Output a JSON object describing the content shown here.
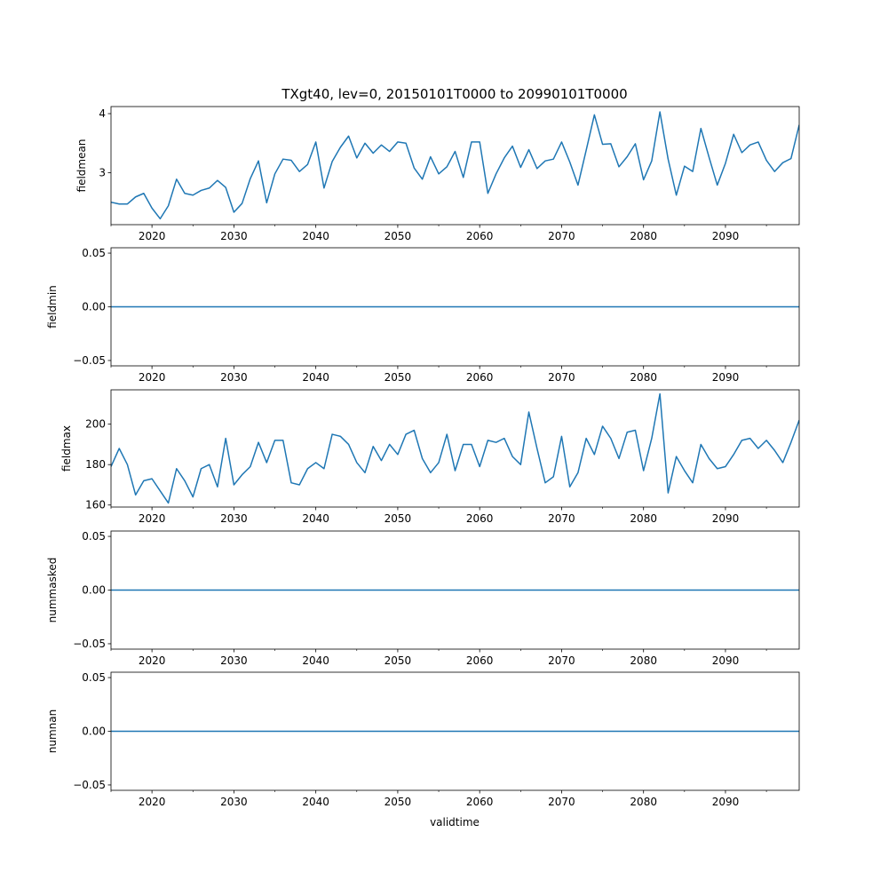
{
  "figure": {
    "title": "TXgt40, lev=0, 20150101T0000 to 20990101T0000",
    "xlabel": "validtime",
    "line_color": "#1f77b4"
  },
  "chart_data": [
    {
      "type": "line",
      "ylabel": "fieldmean",
      "xlim": [
        2015,
        2099
      ],
      "ylim": [
        2.12,
        4.12
      ],
      "yticks": [
        3,
        4
      ],
      "ytick_labels": [
        "3",
        "4"
      ],
      "xticks": [
        2020,
        2030,
        2040,
        2050,
        2060,
        2070,
        2080,
        2090
      ],
      "xtick_labels": [
        "2020",
        "2030",
        "2040",
        "2050",
        "2060",
        "2070",
        "2080",
        "2090"
      ],
      "x": [
        2015,
        2016,
        2017,
        2018,
        2019,
        2020,
        2021,
        2022,
        2023,
        2024,
        2025,
        2026,
        2027,
        2028,
        2029,
        2030,
        2031,
        2032,
        2033,
        2034,
        2035,
        2036,
        2037,
        2038,
        2039,
        2040,
        2041,
        2042,
        2043,
        2044,
        2045,
        2046,
        2047,
        2048,
        2049,
        2050,
        2051,
        2052,
        2053,
        2054,
        2055,
        2056,
        2057,
        2058,
        2059,
        2060,
        2061,
        2062,
        2063,
        2064,
        2065,
        2066,
        2067,
        2068,
        2069,
        2070,
        2071,
        2072,
        2073,
        2074,
        2075,
        2076,
        2077,
        2078,
        2079,
        2080,
        2081,
        2082,
        2083,
        2084,
        2085,
        2086,
        2087,
        2088,
        2089,
        2090,
        2091,
        2092,
        2093,
        2094,
        2095,
        2096,
        2097,
        2098,
        2099
      ],
      "values": [
        2.5,
        2.47,
        2.47,
        2.59,
        2.65,
        2.4,
        2.22,
        2.44,
        2.89,
        2.65,
        2.62,
        2.7,
        2.74,
        2.87,
        2.75,
        2.33,
        2.48,
        2.9,
        3.2,
        2.49,
        2.98,
        3.23,
        3.21,
        3.02,
        3.14,
        3.52,
        2.74,
        3.19,
        3.43,
        3.62,
        3.25,
        3.5,
        3.33,
        3.47,
        3.36,
        3.52,
        3.5,
        3.08,
        2.89,
        3.27,
        2.98,
        3.1,
        3.36,
        2.92,
        3.52,
        3.52,
        2.65,
        2.98,
        3.25,
        3.45,
        3.09,
        3.39,
        3.07,
        3.2,
        3.23,
        3.52,
        3.18,
        2.79,
        3.38,
        3.98,
        3.48,
        3.49,
        3.1,
        3.27,
        3.49,
        2.88,
        3.2,
        4.03,
        3.23,
        2.62,
        3.11,
        3.02,
        3.75,
        3.26,
        2.79,
        3.16,
        3.65,
        3.34,
        3.47,
        3.52,
        3.21,
        3.02,
        3.17,
        3.24,
        3.81
      ]
    },
    {
      "type": "line",
      "ylabel": "fieldmin",
      "xlim": [
        2015,
        2099
      ],
      "ylim": [
        -0.055,
        0.055
      ],
      "yticks": [
        -0.05,
        0.0,
        0.05
      ],
      "ytick_labels": [
        "−0.05",
        "0.00",
        "0.05"
      ],
      "xticks": [
        2020,
        2030,
        2040,
        2050,
        2060,
        2070,
        2080,
        2090
      ],
      "xtick_labels": [
        "2020",
        "2030",
        "2040",
        "2050",
        "2060",
        "2070",
        "2080",
        "2090"
      ],
      "x": [
        2015,
        2099
      ],
      "values": [
        0,
        0
      ]
    },
    {
      "type": "line",
      "ylabel": "fieldmax",
      "xlim": [
        2015,
        2099
      ],
      "ylim": [
        159,
        217
      ],
      "yticks": [
        160,
        180,
        200
      ],
      "ytick_labels": [
        "160",
        "180",
        "200"
      ],
      "xticks": [
        2020,
        2030,
        2040,
        2050,
        2060,
        2070,
        2080,
        2090
      ],
      "xtick_labels": [
        "2020",
        "2030",
        "2040",
        "2050",
        "2060",
        "2070",
        "2080",
        "2090"
      ],
      "x": [
        2015,
        2016,
        2017,
        2018,
        2019,
        2020,
        2021,
        2022,
        2023,
        2024,
        2025,
        2026,
        2027,
        2028,
        2029,
        2030,
        2031,
        2032,
        2033,
        2034,
        2035,
        2036,
        2037,
        2038,
        2039,
        2040,
        2041,
        2042,
        2043,
        2044,
        2045,
        2046,
        2047,
        2048,
        2049,
        2050,
        2051,
        2052,
        2053,
        2054,
        2055,
        2056,
        2057,
        2058,
        2059,
        2060,
        2061,
        2062,
        2063,
        2064,
        2065,
        2066,
        2067,
        2068,
        2069,
        2070,
        2071,
        2072,
        2073,
        2074,
        2075,
        2076,
        2077,
        2078,
        2079,
        2080,
        2081,
        2082,
        2083,
        2084,
        2085,
        2086,
        2087,
        2088,
        2089,
        2090,
        2091,
        2092,
        2093,
        2094,
        2095,
        2096,
        2097,
        2098,
        2099
      ],
      "values": [
        179,
        188,
        180,
        165,
        172,
        173,
        167,
        161,
        178,
        172,
        164,
        178,
        180,
        169,
        193,
        170,
        175,
        179,
        191,
        181,
        192,
        192,
        171,
        170,
        178,
        181,
        178,
        195,
        194,
        190,
        181,
        176,
        189,
        182,
        190,
        185,
        195,
        197,
        183,
        176,
        181,
        195,
        177,
        190,
        190,
        179,
        192,
        191,
        193,
        184,
        180,
        206,
        188,
        171,
        174,
        194,
        169,
        176,
        193,
        185,
        199,
        193,
        183,
        196,
        197,
        177,
        193,
        215,
        166,
        184,
        177,
        171,
        190,
        183,
        178,
        179,
        185,
        192,
        193,
        188,
        192,
        187,
        181,
        191,
        202
      ]
    },
    {
      "type": "line",
      "ylabel": "nummasked",
      "xlim": [
        2015,
        2099
      ],
      "ylim": [
        -0.055,
        0.055
      ],
      "yticks": [
        -0.05,
        0.0,
        0.05
      ],
      "ytick_labels": [
        "−0.05",
        "0.00",
        "0.05"
      ],
      "xticks": [
        2020,
        2030,
        2040,
        2050,
        2060,
        2070,
        2080,
        2090
      ],
      "xtick_labels": [
        "2020",
        "2030",
        "2040",
        "2050",
        "2060",
        "2070",
        "2080",
        "2090"
      ],
      "x": [
        2015,
        2099
      ],
      "values": [
        0,
        0
      ]
    },
    {
      "type": "line",
      "ylabel": "numnan",
      "xlim": [
        2015,
        2099
      ],
      "ylim": [
        -0.055,
        0.055
      ],
      "yticks": [
        -0.05,
        0.0,
        0.05
      ],
      "ytick_labels": [
        "−0.05",
        "0.00",
        "0.05"
      ],
      "xticks": [
        2020,
        2030,
        2040,
        2050,
        2060,
        2070,
        2080,
        2090
      ],
      "xtick_labels": [
        "2020",
        "2030",
        "2040",
        "2050",
        "2060",
        "2070",
        "2080",
        "2090"
      ],
      "x": [
        2015,
        2099
      ],
      "values": [
        0,
        0
      ]
    }
  ]
}
